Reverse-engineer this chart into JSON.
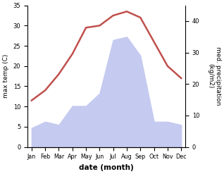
{
  "months": [
    "Jan",
    "Feb",
    "Mar",
    "Apr",
    "May",
    "Jun",
    "Jul",
    "Aug",
    "Sep",
    "Oct",
    "Nov",
    "Dec"
  ],
  "temperature": [
    11.5,
    14,
    18,
    23,
    29.5,
    30,
    32.5,
    33.5,
    32,
    26,
    20,
    17
  ],
  "precipitation": [
    6,
    8,
    7,
    13,
    13,
    17,
    34,
    35,
    29,
    8,
    8,
    7
  ],
  "temp_color": "#c0504d",
  "precip_fill_color": "#c5caf0",
  "ylim_temp": [
    0,
    35
  ],
  "ylim_precip": [
    0,
    45
  ],
  "yticks_temp": [
    0,
    5,
    10,
    15,
    20,
    25,
    30,
    35
  ],
  "yticks_precip": [
    0,
    10,
    20,
    30,
    40
  ],
  "ylabel_left": "max temp (C)",
  "ylabel_right": "med. precipitation\n(kg/m2)",
  "xlabel": "date (month)",
  "bg_color": "#ffffff",
  "temp_linewidth": 1.8
}
